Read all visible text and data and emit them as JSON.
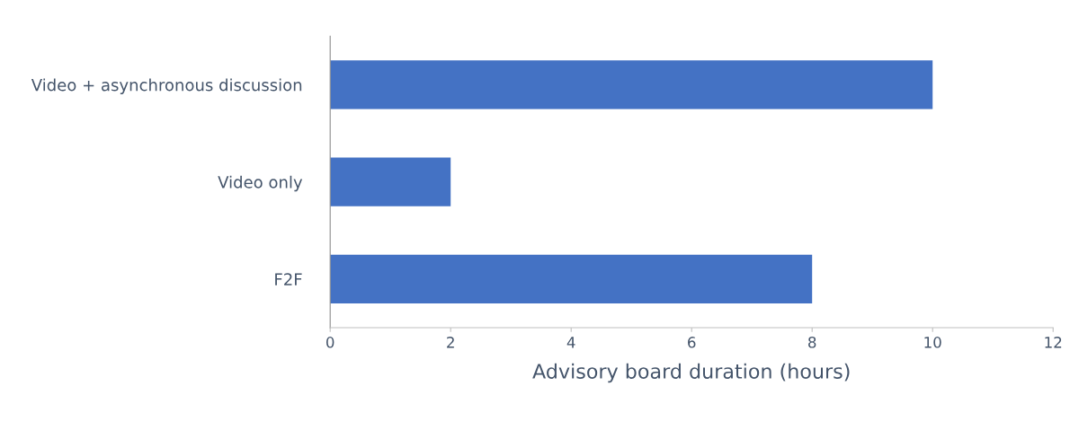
{
  "chart_data": {
    "type": "bar",
    "orientation": "horizontal",
    "xlabel": "Advisory board duration (hours)",
    "categories": [
      "Video + asynchronous discussion",
      "Video only",
      "F2F"
    ],
    "values": [
      10,
      2,
      8
    ],
    "color": "#4472c4",
    "xlim": [
      0,
      12
    ],
    "xticks": [
      0,
      2,
      4,
      6,
      8,
      10,
      12
    ],
    "grid": false,
    "legend": false
  }
}
